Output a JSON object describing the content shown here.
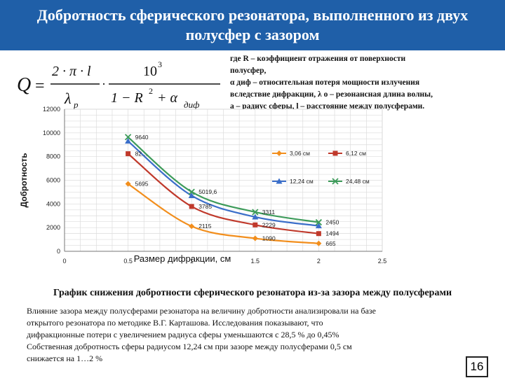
{
  "header": {
    "title_line1": "Добротность сферического резонатора, выполненного из двух",
    "title_line2": "полусфер с зазором",
    "background": "#1f5fa8"
  },
  "formula": {
    "q": "Q",
    "eq": "=",
    "two_pi_l": "2 · π · l",
    "lambda": "λ",
    "lambda_sub": "p",
    "dot": "·",
    "ten": "10",
    "ten_exp": "3",
    "one_minus_r2": "1 − R",
    "r2_exp": "2",
    "plus_alpha": "+ α",
    "alpha_sub": "диф"
  },
  "note": {
    "line1": "где R – коэффициент отражения от поверхности",
    "line2": "полусфер,",
    "line3": "α диф – относительная потеря мощности излучения",
    "line4": "вследствие дифракции,   λ о – резонансная длина волны,",
    "line5": "а – радиус сферы, l – расстояние между полусферами."
  },
  "chart_data": {
    "type": "line",
    "title": "",
    "xlabel": "Размер дифракции, см",
    "ylabel": "Добротность",
    "xlim": [
      0,
      2.5
    ],
    "ylim": [
      0,
      12000
    ],
    "x_ticks": [
      "0",
      "0.5",
      "1",
      "1.5",
      "2",
      "2.5"
    ],
    "y_ticks": [
      "0",
      "2000",
      "4000",
      "6000",
      "8000",
      "10000",
      "12000"
    ],
    "x": [
      0.5,
      1,
      1.5,
      2
    ],
    "grid": true,
    "legend_position": "top-right",
    "series": [
      {
        "name": "3,06 см",
        "color": "#f28e1c",
        "marker": "diamond",
        "values": [
          5695,
          2115,
          1090,
          665
        ]
      },
      {
        "name": "6,12 см",
        "color": "#c0392b",
        "marker": "square",
        "values": [
          8240,
          3785,
          2229,
          1494
        ]
      },
      {
        "name": "12,24 см",
        "color": "#3a6ec9",
        "marker": "triangle",
        "values": [
          9300,
          4700,
          2900,
          2150
        ]
      },
      {
        "name": "24,48 см",
        "color": "#3d9b5a",
        "marker": "x",
        "values": [
          9640,
          5019.6,
          3311,
          2450
        ]
      }
    ],
    "data_labels": [
      {
        "x": 0.5,
        "y": 9640,
        "text": "9640"
      },
      {
        "x": 0.5,
        "y": 8240,
        "text": "82…"
      },
      {
        "x": 0.5,
        "y": 5695,
        "text": "5695"
      },
      {
        "x": 1,
        "y": 5019.6,
        "text": "5019,6"
      },
      {
        "x": 1,
        "y": 3785,
        "text": "3785"
      },
      {
        "x": 1,
        "y": 2115,
        "text": "2115"
      },
      {
        "x": 1.5,
        "y": 3311,
        "text": "3311"
      },
      {
        "x": 1.5,
        "y": 2229,
        "text": "2229"
      },
      {
        "x": 1.5,
        "y": 1090,
        "text": "1090"
      },
      {
        "x": 2,
        "y": 2450,
        "text": "2450"
      },
      {
        "x": 2,
        "y": 1494,
        "text": "1494"
      },
      {
        "x": 2,
        "y": 665,
        "text": "665"
      }
    ]
  },
  "caption": "График снижения добротности сферического резонатора из-за зазора между полусферами",
  "body": {
    "line1": "Влияние зазора между полусферами резонатора на величину добротности анализировали на базе",
    "line2": "открытого резонатора по методике В.Г. Карташова. Исследования показывают, что",
    "line3": "дифракционные потери с увеличением радиуса сферы уменьшаются с 28,5 % до 0,45%",
    "line4": "Собственная добротность сферы радиусом 12,24 см при зазоре между полусферами 0,5 см",
    "line5": "снижается на 1…2 %"
  },
  "page_number": "16"
}
